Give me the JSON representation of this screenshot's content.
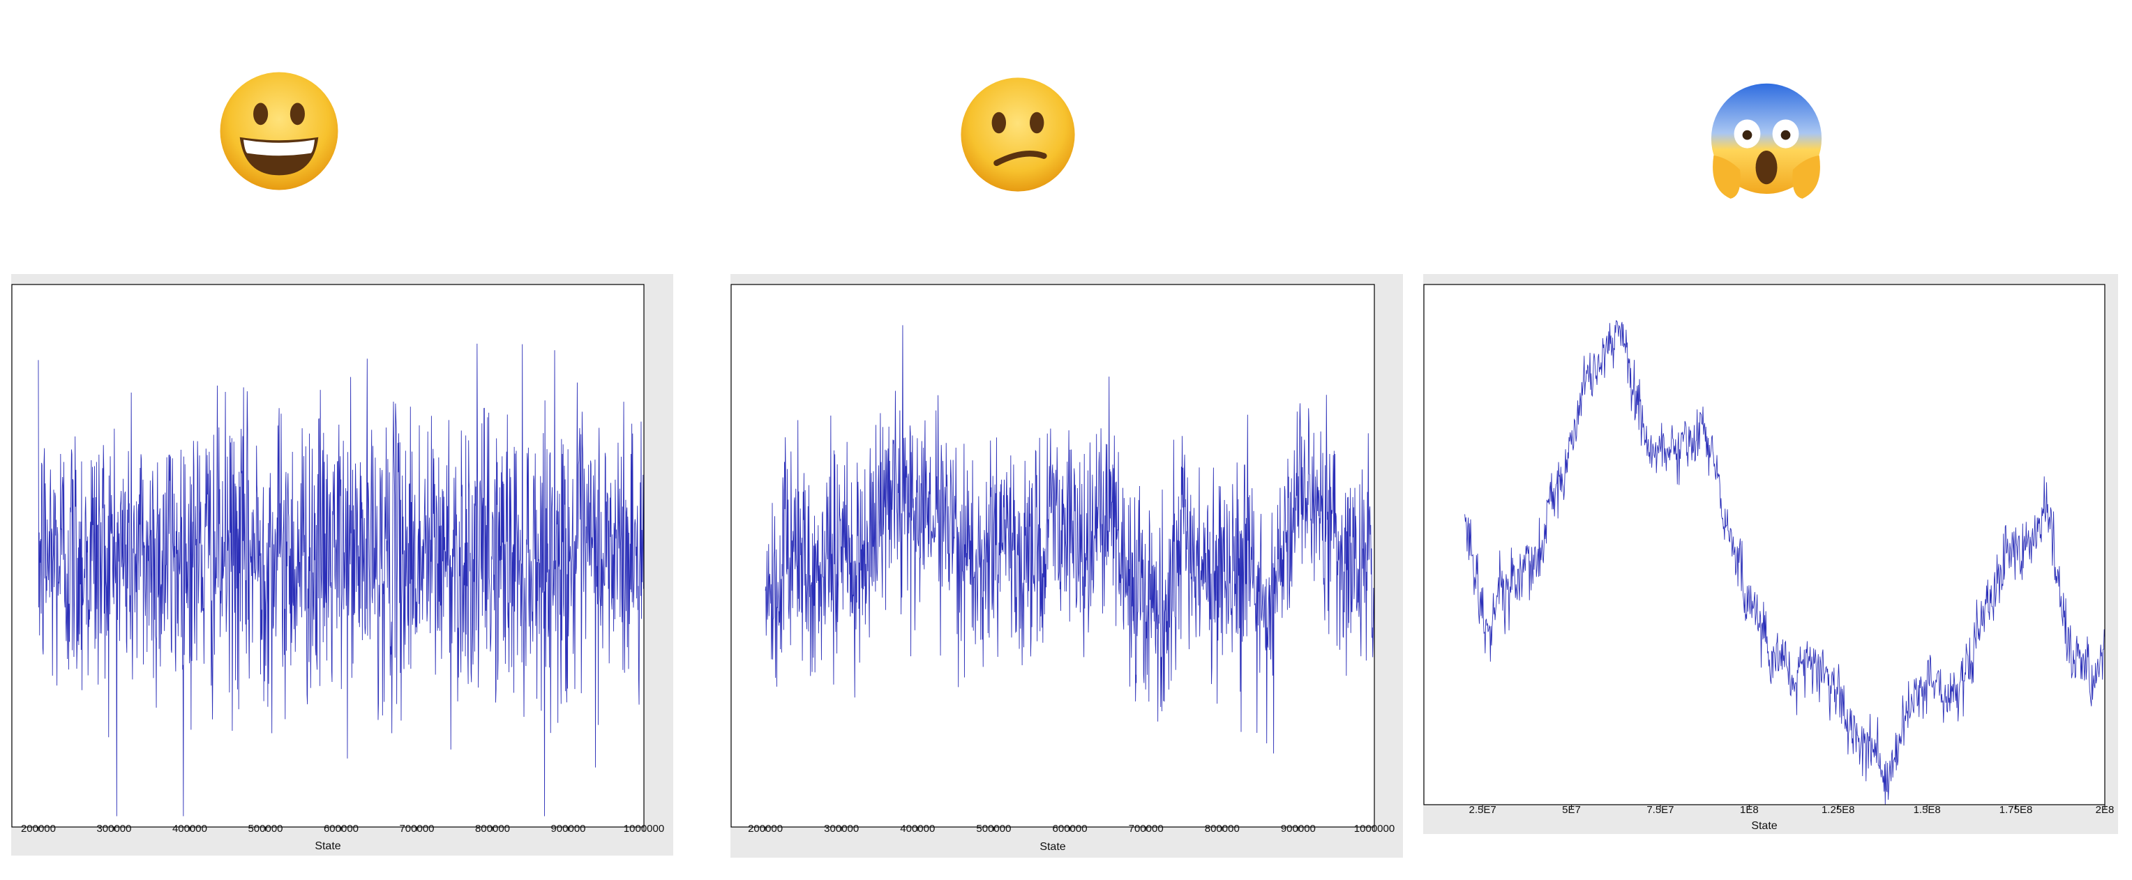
{
  "panels": [
    {
      "emoji": "happy-face",
      "emoji_name": "grinning-face-icon"
    },
    {
      "emoji": "worried-face",
      "emoji_name": "confused-face-icon"
    },
    {
      "emoji": "screaming-face",
      "emoji_name": "face-screaming-in-fear-icon"
    }
  ],
  "colors": {
    "trace": "#2b2fb8",
    "panel_bg": "#e9e9e9",
    "plot_bg": "#ffffff",
    "axis": "#000000"
  },
  "chart_data": [
    {
      "type": "line",
      "title": "",
      "xlabel": "State",
      "ylabel": "",
      "x_ticks": [
        "200000",
        "300000",
        "400000",
        "500000",
        "600000",
        "700000",
        "800000",
        "900000",
        "1000000"
      ],
      "xlim": [
        165000,
        1000000
      ],
      "grid": false,
      "trace_style": "white-noise",
      "x_start": 200000,
      "x_end": 1000000,
      "series": [
        {
          "values": []
        }
      ]
    },
    {
      "type": "line",
      "title": "",
      "xlabel": "State",
      "ylabel": "",
      "x_ticks": [
        "200000",
        "300000",
        "400000",
        "500000",
        "600000",
        "700000",
        "800000",
        "900000",
        "1000000"
      ],
      "xlim": [
        155000,
        1000000
      ],
      "grid": false,
      "trace_style": "correlated-noise",
      "x_start": 200000,
      "x_end": 1000000,
      "series": [
        {
          "values": []
        }
      ]
    },
    {
      "type": "line",
      "title": "",
      "xlabel": "State",
      "ylabel": "",
      "x_ticks": [
        "2.5E7",
        "5E7",
        "7.5E7",
        "1E8",
        "1.25E8",
        "1.5E8",
        "1.75E8",
        "2E8"
      ],
      "x_tick_values": [
        25000000,
        50000000,
        75000000,
        100000000,
        125000000,
        150000000,
        175000000,
        200000000
      ],
      "xlim": [
        8500000,
        200000000
      ],
      "grid": false,
      "trace_style": "random-walk",
      "x_start": 20000000,
      "x_end": 200000000,
      "series": [
        {
          "values": []
        }
      ]
    }
  ]
}
